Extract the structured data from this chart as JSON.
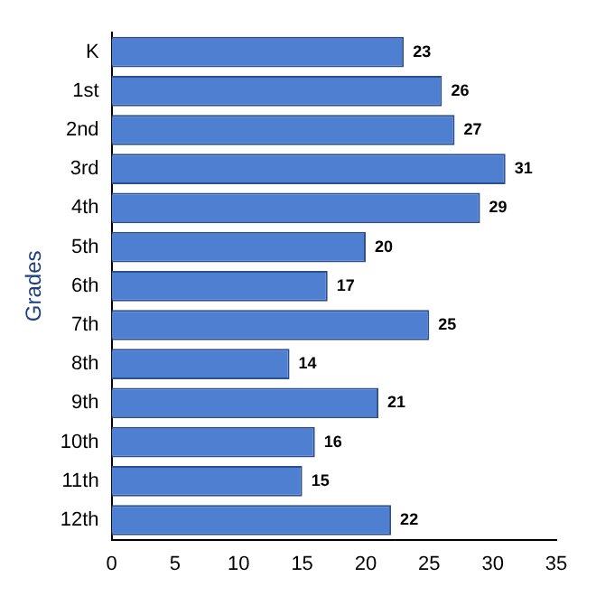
{
  "chart_data": {
    "type": "bar",
    "orientation": "horizontal",
    "ylabel": "Grades",
    "categories": [
      "K",
      "1st",
      "2nd",
      "3rd",
      "4th",
      "5th",
      "6th",
      "7th",
      "8th",
      "9th",
      "10th",
      "11th",
      "12th"
    ],
    "values": [
      23,
      26,
      27,
      31,
      29,
      20,
      17,
      25,
      14,
      21,
      16,
      15,
      22
    ],
    "color": "#4f7fd0",
    "xlim": [
      0,
      35
    ],
    "xticks": [
      0,
      5,
      10,
      15,
      20,
      25,
      30,
      35
    ],
    "data_labels": true,
    "grid": false,
    "legend": false
  }
}
